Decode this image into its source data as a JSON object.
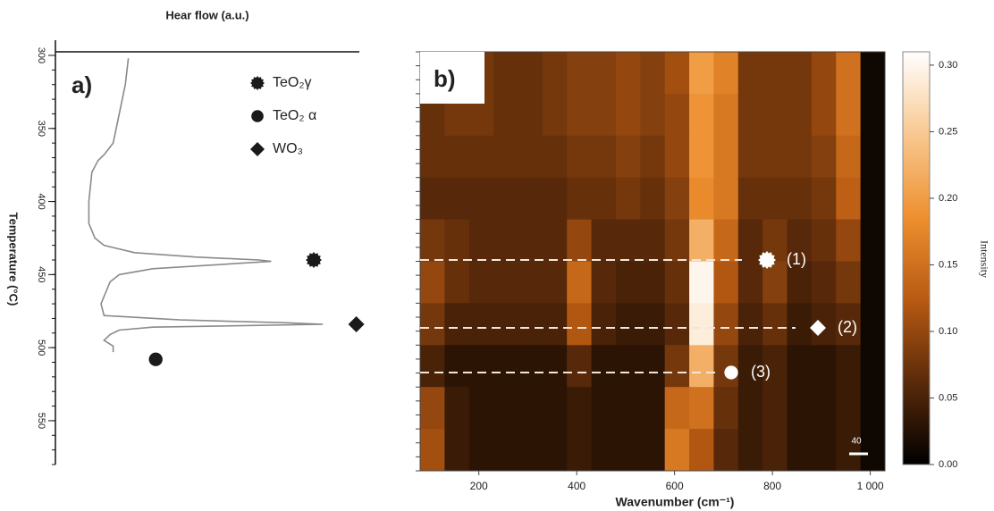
{
  "chart_data": [
    {
      "type": "line",
      "panel": "a)",
      "xlabel": "Hear flow (a.u.)",
      "ylabel": "Temperature (°C)",
      "xlim": [
        0,
        1
      ],
      "ylim": [
        300,
        580
      ],
      "y_inverted": true,
      "yticks": [
        300,
        350,
        400,
        450,
        500,
        550
      ],
      "series": [
        {
          "name": "Heat flow",
          "color": "#8a8a8a",
          "x": [
            0.24,
            0.23,
            0.21,
            0.2,
            0.19,
            0.16,
            0.14,
            0.12,
            0.11,
            0.11,
            0.13,
            0.16,
            0.26,
            0.46,
            0.67,
            0.71,
            0.55,
            0.32,
            0.21,
            0.18,
            0.15,
            0.16,
            0.41,
            0.76,
            0.88,
            0.32,
            0.21,
            0.18,
            0.16,
            0.19,
            0.19
          ],
          "y": [
            302,
            320,
            340,
            350,
            360,
            368,
            372,
            380,
            400,
            415,
            425,
            430,
            435,
            438,
            440,
            441,
            443,
            446,
            450,
            455,
            470,
            478,
            481,
            483,
            484,
            486,
            488,
            491,
            495,
            499,
            503
          ]
        },
        {
          "name": "TeO₂γ",
          "color": "#1a1a1a",
          "marker": "star",
          "x": [
            0.85
          ],
          "y": [
            440
          ]
        },
        {
          "name": "TeO₂ α",
          "color": "#1a1a1a",
          "marker": "circle",
          "x": [
            0.33
          ],
          "y": [
            508
          ]
        },
        {
          "name": "WO₃",
          "color": "#1a1a1a",
          "marker": "diamond",
          "x": [
            0.99
          ],
          "y": [
            484
          ]
        }
      ]
    },
    {
      "type": "heatmap",
      "panel": "b)",
      "xlabel": "Wavenumber (cm⁻¹)",
      "colorbar_label": "Intensity",
      "xlim": [
        80,
        1030
      ],
      "xticks": [
        200,
        400,
        600,
        800,
        {
          "value": 1000,
          "label": "1 000"
        }
      ],
      "bins": [
        80,
        130,
        180,
        230,
        280,
        330,
        380,
        430,
        480,
        530,
        580,
        630,
        680,
        730,
        780,
        830,
        880,
        930,
        980,
        1030
      ],
      "z": [
        [
          0.07,
          0.08,
          0.08,
          0.07,
          0.07,
          0.08,
          0.09,
          0.09,
          0.1,
          0.09,
          0.11,
          0.2,
          0.17,
          0.08,
          0.08,
          0.08,
          0.1,
          0.15,
          0.01
        ],
        [
          0.07,
          0.08,
          0.08,
          0.07,
          0.07,
          0.08,
          0.09,
          0.09,
          0.1,
          0.09,
          0.1,
          0.19,
          0.16,
          0.08,
          0.08,
          0.08,
          0.1,
          0.15,
          0.01
        ],
        [
          0.07,
          0.07,
          0.07,
          0.07,
          0.07,
          0.07,
          0.08,
          0.08,
          0.09,
          0.08,
          0.1,
          0.19,
          0.16,
          0.08,
          0.08,
          0.08,
          0.09,
          0.14,
          0.01
        ],
        [
          0.06,
          0.06,
          0.06,
          0.06,
          0.06,
          0.06,
          0.07,
          0.07,
          0.08,
          0.07,
          0.09,
          0.18,
          0.16,
          0.07,
          0.07,
          0.07,
          0.08,
          0.13,
          0.01
        ],
        [
          0.08,
          0.07,
          0.06,
          0.06,
          0.06,
          0.06,
          0.1,
          0.06,
          0.06,
          0.06,
          0.08,
          0.22,
          0.14,
          0.06,
          0.08,
          0.06,
          0.07,
          0.1,
          0.01
        ],
        [
          0.1,
          0.07,
          0.06,
          0.06,
          0.06,
          0.06,
          0.14,
          0.06,
          0.05,
          0.05,
          0.07,
          0.3,
          0.12,
          0.06,
          0.09,
          0.05,
          0.06,
          0.08,
          0.01
        ],
        [
          0.08,
          0.05,
          0.05,
          0.05,
          0.05,
          0.05,
          0.12,
          0.05,
          0.04,
          0.04,
          0.06,
          0.29,
          0.1,
          0.05,
          0.07,
          0.04,
          0.05,
          0.06,
          0.01
        ],
        [
          0.05,
          0.03,
          0.03,
          0.03,
          0.03,
          0.03,
          0.06,
          0.03,
          0.03,
          0.03,
          0.08,
          0.22,
          0.08,
          0.04,
          0.05,
          0.03,
          0.03,
          0.04,
          0.01
        ],
        [
          0.1,
          0.04,
          0.03,
          0.03,
          0.03,
          0.03,
          0.04,
          0.03,
          0.03,
          0.03,
          0.14,
          0.15,
          0.07,
          0.04,
          0.05,
          0.03,
          0.03,
          0.04,
          0.01
        ],
        [
          0.11,
          0.04,
          0.03,
          0.03,
          0.03,
          0.03,
          0.04,
          0.03,
          0.03,
          0.03,
          0.16,
          0.12,
          0.06,
          0.04,
          0.05,
          0.03,
          0.03,
          0.04,
          0.01
        ]
      ],
      "zlim": [
        0,
        0.31
      ],
      "zticks": [
        {
          "value": 0,
          "label": "0.00"
        },
        0.05,
        {
          "value": 0.1,
          "label": "0.10"
        },
        0.15,
        {
          "value": 0.2,
          "label": "0.20"
        },
        0.25,
        {
          "value": 0.3,
          "label": "0.30"
        }
      ],
      "colormap": [
        "#000000",
        "#5a2a0a",
        "#b85a12",
        "#ee9030",
        "#f8c890",
        "#ffffff"
      ],
      "annotations": [
        "(1)",
        "(2)",
        "(3)"
      ],
      "scale_label": "40"
    }
  ]
}
